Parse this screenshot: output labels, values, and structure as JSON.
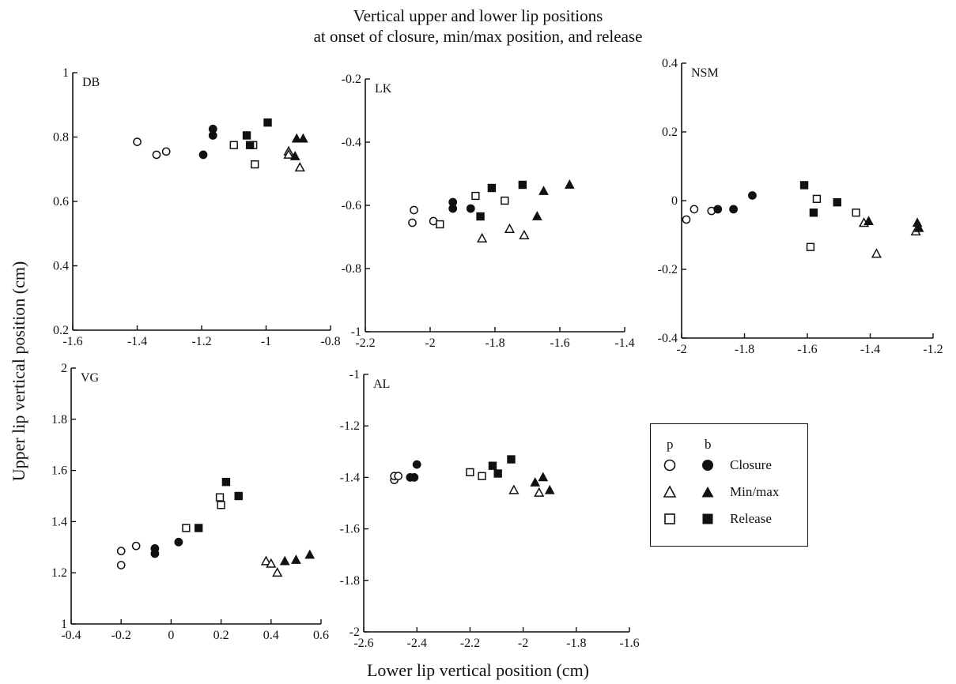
{
  "figure": {
    "title_line1": "Vertical upper and lower lip positions",
    "title_line2": "at onset of closure, min/max position, and release",
    "ylabel": "Upper lip vertical position (cm)",
    "xlabel": "Lower lip vertical position (cm)"
  },
  "legend": {
    "col_p": "p",
    "col_b": "b",
    "items": [
      {
        "label": "Closure",
        "marker": "circle"
      },
      {
        "label": "Min/max",
        "marker": "triangle"
      },
      {
        "label": "Release",
        "marker": "square"
      }
    ]
  },
  "chart_data": [
    {
      "type": "scatter",
      "label": "DB",
      "xlim": [
        -1.6,
        -0.8
      ],
      "ylim": [
        0.2,
        1
      ],
      "xticks": [
        "-1.6",
        "-1.4",
        "-1.2",
        "-1",
        "-0.8"
      ],
      "yticks": [
        "0.2",
        "0.4",
        "0.6",
        "0.8",
        "1"
      ],
      "series": [
        {
          "name": "p Closure",
          "marker": "circle",
          "filled": false,
          "points": [
            [
              -1.4,
              0.785
            ],
            [
              -1.34,
              0.745
            ],
            [
              -1.31,
              0.755
            ]
          ]
        },
        {
          "name": "b Closure",
          "marker": "circle",
          "filled": true,
          "points": [
            [
              -1.195,
              0.745
            ],
            [
              -1.165,
              0.805
            ],
            [
              -1.165,
              0.825
            ]
          ]
        },
        {
          "name": "p Min/max",
          "marker": "triangle",
          "filled": false,
          "points": [
            [
              -0.93,
              0.755
            ],
            [
              -0.93,
              0.745
            ],
            [
              -0.895,
              0.705
            ]
          ]
        },
        {
          "name": "b Min/max",
          "marker": "triangle",
          "filled": true,
          "points": [
            [
              -0.91,
              0.74
            ],
            [
              -0.905,
              0.795
            ],
            [
              -0.885,
              0.795
            ]
          ]
        },
        {
          "name": "p Release",
          "marker": "square",
          "filled": false,
          "points": [
            [
              -1.1,
              0.775
            ],
            [
              -1.04,
              0.775
            ],
            [
              -1.035,
              0.715
            ]
          ]
        },
        {
          "name": "b Release",
          "marker": "square",
          "filled": true,
          "points": [
            [
              -1.06,
              0.805
            ],
            [
              -1.05,
              0.775
            ],
            [
              -0.995,
              0.845
            ]
          ]
        }
      ]
    },
    {
      "type": "scatter",
      "label": "LK",
      "xlim": [
        -2.2,
        -1.4
      ],
      "ylim": [
        -1,
        -0.2
      ],
      "xticks": [
        "-2.2",
        "-2",
        "-1.8",
        "-1.6",
        "-1.4"
      ],
      "yticks": [
        "-1",
        "-0.8",
        "-0.6",
        "-0.4",
        "-0.2"
      ],
      "series": [
        {
          "name": "p Closure",
          "marker": "circle",
          "filled": false,
          "points": [
            [
              -2.05,
              -0.615
            ],
            [
              -2.055,
              -0.655
            ],
            [
              -1.99,
              -0.65
            ]
          ]
        },
        {
          "name": "b Closure",
          "marker": "circle",
          "filled": true,
          "points": [
            [
              -1.93,
              -0.59
            ],
            [
              -1.93,
              -0.61
            ],
            [
              -1.875,
              -0.61
            ]
          ]
        },
        {
          "name": "p Min/max",
          "marker": "triangle",
          "filled": false,
          "points": [
            [
              -1.84,
              -0.705
            ],
            [
              -1.755,
              -0.675
            ],
            [
              -1.71,
              -0.695
            ]
          ]
        },
        {
          "name": "b Min/max",
          "marker": "triangle",
          "filled": true,
          "points": [
            [
              -1.67,
              -0.635
            ],
            [
              -1.65,
              -0.555
            ],
            [
              -1.57,
              -0.535
            ]
          ]
        },
        {
          "name": "p Release",
          "marker": "square",
          "filled": false,
          "points": [
            [
              -1.97,
              -0.66
            ],
            [
              -1.86,
              -0.57
            ],
            [
              -1.77,
              -0.585
            ]
          ]
        },
        {
          "name": "b Release",
          "marker": "square",
          "filled": true,
          "points": [
            [
              -1.845,
              -0.635
            ],
            [
              -1.81,
              -0.545
            ],
            [
              -1.715,
              -0.535
            ]
          ]
        }
      ]
    },
    {
      "type": "scatter",
      "label": "NSM",
      "xlim": [
        -2,
        -1.2
      ],
      "ylim": [
        -0.4,
        0.4
      ],
      "xticks": [
        "-2",
        "-1.8",
        "-1.6",
        "-1.4",
        "-1.2"
      ],
      "yticks": [
        "-0.4",
        "-0.2",
        "0",
        "0.2",
        "0.4"
      ],
      "series": [
        {
          "name": "p Closure",
          "marker": "circle",
          "filled": false,
          "points": [
            [
              -1.985,
              -0.055
            ],
            [
              -1.96,
              -0.025
            ],
            [
              -1.905,
              -0.03
            ]
          ]
        },
        {
          "name": "b Closure",
          "marker": "circle",
          "filled": true,
          "points": [
            [
              -1.885,
              -0.025
            ],
            [
              -1.835,
              -0.025
            ],
            [
              -1.775,
              0.015
            ]
          ]
        },
        {
          "name": "p Min/max",
          "marker": "triangle",
          "filled": false,
          "points": [
            [
              -1.42,
              -0.065
            ],
            [
              -1.38,
              -0.155
            ],
            [
              -1.255,
              -0.09
            ]
          ]
        },
        {
          "name": "b Min/max",
          "marker": "triangle",
          "filled": true,
          "points": [
            [
              -1.405,
              -0.06
            ],
            [
              -1.25,
              -0.065
            ],
            [
              -1.245,
              -0.08
            ]
          ]
        },
        {
          "name": "p Release",
          "marker": "square",
          "filled": false,
          "points": [
            [
              -1.59,
              -0.135
            ],
            [
              -1.57,
              0.005
            ],
            [
              -1.445,
              -0.035
            ]
          ]
        },
        {
          "name": "b Release",
          "marker": "square",
          "filled": true,
          "points": [
            [
              -1.61,
              0.045
            ],
            [
              -1.58,
              -0.035
            ],
            [
              -1.505,
              -0.005
            ]
          ]
        }
      ]
    },
    {
      "type": "scatter",
      "label": "VG",
      "xlim": [
        -0.4,
        0.6
      ],
      "ylim": [
        1,
        2
      ],
      "xticks": [
        "-0.4",
        "-0.2",
        "0",
        "0.2",
        "0.4",
        "0.6"
      ],
      "yticks": [
        "1",
        "1.2",
        "1.4",
        "1.6",
        "1.8",
        "2"
      ],
      "series": [
        {
          "name": "p Closure",
          "marker": "circle",
          "filled": false,
          "points": [
            [
              -0.2,
              1.285
            ],
            [
              -0.2,
              1.23
            ],
            [
              -0.14,
              1.305
            ]
          ]
        },
        {
          "name": "b Closure",
          "marker": "circle",
          "filled": true,
          "points": [
            [
              -0.065,
              1.295
            ],
            [
              -0.065,
              1.275
            ],
            [
              0.03,
              1.32
            ]
          ]
        },
        {
          "name": "p Min/max",
          "marker": "triangle",
          "filled": false,
          "points": [
            [
              0.38,
              1.245
            ],
            [
              0.4,
              1.235
            ],
            [
              0.425,
              1.2
            ]
          ]
        },
        {
          "name": "b Min/max",
          "marker": "triangle",
          "filled": true,
          "points": [
            [
              0.455,
              1.245
            ],
            [
              0.5,
              1.25
            ],
            [
              0.555,
              1.27
            ]
          ]
        },
        {
          "name": "p Release",
          "marker": "square",
          "filled": false,
          "points": [
            [
              0.06,
              1.375
            ],
            [
              0.195,
              1.495
            ],
            [
              0.2,
              1.465
            ]
          ]
        },
        {
          "name": "b Release",
          "marker": "square",
          "filled": true,
          "points": [
            [
              0.11,
              1.375
            ],
            [
              0.22,
              1.555
            ],
            [
              0.27,
              1.5
            ]
          ]
        }
      ]
    },
    {
      "type": "scatter",
      "label": "AL",
      "xlim": [
        -2.6,
        -1.6
      ],
      "ylim": [
        -2,
        -1
      ],
      "xticks": [
        "-2.6",
        "-2.4",
        "-2.2",
        "-2",
        "-1.8",
        "-1.6"
      ],
      "yticks": [
        "-2",
        "-1.8",
        "-1.6",
        "-1.4",
        "-1.2",
        "-1"
      ],
      "series": [
        {
          "name": "p Closure",
          "marker": "circle",
          "filled": false,
          "points": [
            [
              -2.485,
              -1.41
            ],
            [
              -2.485,
              -1.395
            ],
            [
              -2.47,
              -1.395
            ]
          ]
        },
        {
          "name": "b Closure",
          "marker": "circle",
          "filled": true,
          "points": [
            [
              -2.425,
              -1.4
            ],
            [
              -2.41,
              -1.4
            ],
            [
              -2.4,
              -1.35
            ]
          ]
        },
        {
          "name": "p Min/max",
          "marker": "triangle",
          "filled": false,
          "points": [
            [
              -2.035,
              -1.45
            ],
            [
              -1.94,
              -1.46
            ]
          ]
        },
        {
          "name": "b Min/max",
          "marker": "triangle",
          "filled": true,
          "points": [
            [
              -1.955,
              -1.42
            ],
            [
              -1.925,
              -1.4
            ],
            [
              -1.9,
              -1.45
            ]
          ]
        },
        {
          "name": "p Release",
          "marker": "square",
          "filled": false,
          "points": [
            [
              -2.2,
              -1.38
            ],
            [
              -2.155,
              -1.395
            ]
          ]
        },
        {
          "name": "b Release",
          "marker": "square",
          "filled": true,
          "points": [
            [
              -2.115,
              -1.355
            ],
            [
              -2.095,
              -1.385
            ],
            [
              -2.045,
              -1.33
            ]
          ]
        }
      ]
    }
  ]
}
